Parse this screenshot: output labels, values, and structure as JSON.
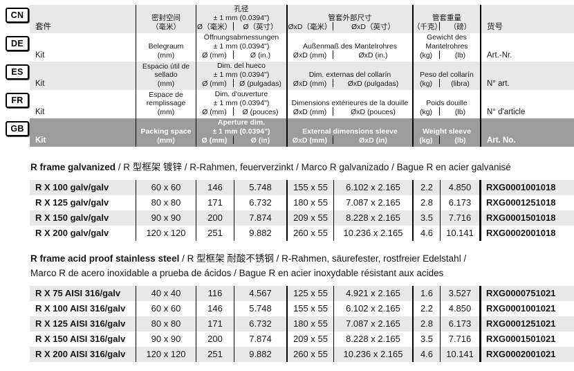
{
  "colors": {
    "row_stripe": "#e8e8e8",
    "row_dark": "#9c9c9c",
    "line": "#000000",
    "text": "#161616",
    "text_on_dark": "#ffffff"
  },
  "header": {
    "rows": [
      {
        "lang": "CN",
        "kit": "套件",
        "packing_lines": [
          "密封空间",
          "（毫米）"
        ],
        "aperture_lines": [
          "孔径",
          "± 1 mm (0.0394\")"
        ],
        "aperture_mm": "Ø（毫米）",
        "aperture_in": "Ø（英寸）",
        "external_lines": [
          "管套外部尺寸"
        ],
        "external_mm": "ØxD（毫米）",
        "external_in": "ØxD（英寸）",
        "weight_lines": [
          "管套重量"
        ],
        "weight_kg": "（千克）",
        "weight_lb": "（磅）",
        "art": "货号"
      },
      {
        "lang": "DE",
        "kit": "Kit",
        "packing_lines": [
          "Belegraum",
          "(mm)"
        ],
        "aperture_lines": [
          "Öffnungsabmessungen",
          "± 1 mm (0.0394\")"
        ],
        "aperture_mm": "Ø (mm)",
        "aperture_in": "Ø (in.)",
        "external_lines": [
          "Außenmaß des Mantelrohres"
        ],
        "external_mm": "ØxD (mm)",
        "external_in": "ØxD (in.)",
        "weight_lines": [
          "Gewicht des",
          "Mantelrohres"
        ],
        "weight_kg": "(kg)",
        "weight_lb": "(lb)",
        "art": "Art.-Nr."
      },
      {
        "lang": "ES",
        "kit": "Kit",
        "packing_lines": [
          "Espacio útil de",
          "sellado",
          "(mm)"
        ],
        "aperture_lines": [
          "Dim. del hueco",
          "± 1 mm (0.0394\")"
        ],
        "aperture_mm": "Ø (mm)",
        "aperture_in": "Ø (pulgadas)",
        "external_lines": [
          "Dim. externas del collarín"
        ],
        "external_mm": "ØxD (mm)",
        "external_in": "ØxD (pulgadas)",
        "weight_lines": [
          "Peso del collarín"
        ],
        "weight_kg": "(kg)",
        "weight_lb": "(libra)",
        "art": "N° art."
      },
      {
        "lang": "FR",
        "kit": "Kit",
        "packing_lines": [
          "Espace de",
          "remplissage",
          "(mm)"
        ],
        "aperture_lines": [
          "Dim. d'ouverture",
          "± 1 mm (0.0394\")"
        ],
        "aperture_mm": "Ø (mm)",
        "aperture_in": "Ø (pouces)",
        "external_lines": [
          "Dimensions extérieures de la douille"
        ],
        "external_mm": "ØxD (mm)",
        "external_in": "ØxD (pouces)",
        "weight_lines": [
          "Poids douille"
        ],
        "weight_kg": "(kg)",
        "weight_lb": "(lb)",
        "art": "N° d'article"
      },
      {
        "lang": "GB",
        "kit": "Kit",
        "packing_lines": [
          "Packing space",
          "(mm)"
        ],
        "aperture_lines": [
          "Aperture dim.",
          "± 1 mm (0.0394\")"
        ],
        "aperture_mm": "Ø (mm)",
        "aperture_in": "Ø (in)",
        "external_lines": [
          "External dimensions sleeve"
        ],
        "external_mm": "ØxD (mm)",
        "external_in": "ØxD (in)",
        "weight_lines": [
          "Weight sleeve"
        ],
        "weight_kg": "(kg)",
        "weight_lb": "(lb)",
        "art": "Art. No."
      }
    ]
  },
  "sections": [
    {
      "title_lines": [
        {
          "bold": "R frame galvanized",
          "rest": " / R 型框架 镀锌 / R-Rahmen, feuerverzinkt / Marco R galvanizado / Bague R en acier galvanisé"
        }
      ],
      "rows": [
        [
          "R X 100 galv/galv",
          "60 x 60",
          "146",
          "5.748",
          "155 x 55",
          "6.102 x 2.165",
          "2.2",
          "4.850",
          "RXG0001001018"
        ],
        [
          "R X 125 galv/galv",
          "80 x 80",
          "171",
          "6.732",
          "180 x 55",
          "7.087 x 2.165",
          "2.8",
          "6.173",
          "RXG0001251018"
        ],
        [
          "R X 150 galv/galv",
          "90 x 90",
          "200",
          "7.874",
          "209 x 55",
          "8.228 x 2.165",
          "3.5",
          "7.716",
          "RXG0001501018"
        ],
        [
          "R X 200 galv/galv",
          "120 x 120",
          "251",
          "9.882",
          "260 x 55",
          "10.236 x 2.165",
          "4.6",
          "10.141",
          "RXG0002001018"
        ]
      ]
    },
    {
      "title_lines": [
        {
          "bold": "R frame acid proof stainless steel",
          "rest": " / R 型框架 耐酸不锈钢 / R-Rahmen, säurefester, rostfreier Edelstahl /"
        },
        {
          "bold": "",
          "rest": "Marco R de acero inoxidable a prueba de ácidos / Bague R en acier inoxydable résistant aux acides"
        }
      ],
      "rows": [
        [
          "R X 75 AISI 316/galv",
          "40 x 40",
          "116",
          "4.567",
          "125 x 55",
          "4.921 x 2.165",
          "1.6",
          "3.527",
          "RXG0000751021"
        ],
        [
          "R X 100 AISI 316/galv",
          "60 x 60",
          "146",
          "5.748",
          "155 x 55",
          "6.102 x 2.165",
          "2.2",
          "4.850",
          "RXG0001001021"
        ],
        [
          "R X 125 AISI 316/galv",
          "80 x 80",
          "171",
          "6.732",
          "180 x 55",
          "7.087 x 2.165",
          "2.8",
          "6.173",
          "RXG0001251021"
        ],
        [
          "R X 150 AISI 316/galv",
          "90 x 90",
          "200",
          "7.874",
          "209 x 55",
          "8.228 x 2.165",
          "3.5",
          "7.716",
          "RXG0001501021"
        ],
        [
          "R X 200 AISI 316/galv",
          "120 x 120",
          "251",
          "9.882",
          "260 x 55",
          "10.236 x 2.165",
          "4.6",
          "10.141",
          "RXG0002001021"
        ]
      ]
    }
  ]
}
